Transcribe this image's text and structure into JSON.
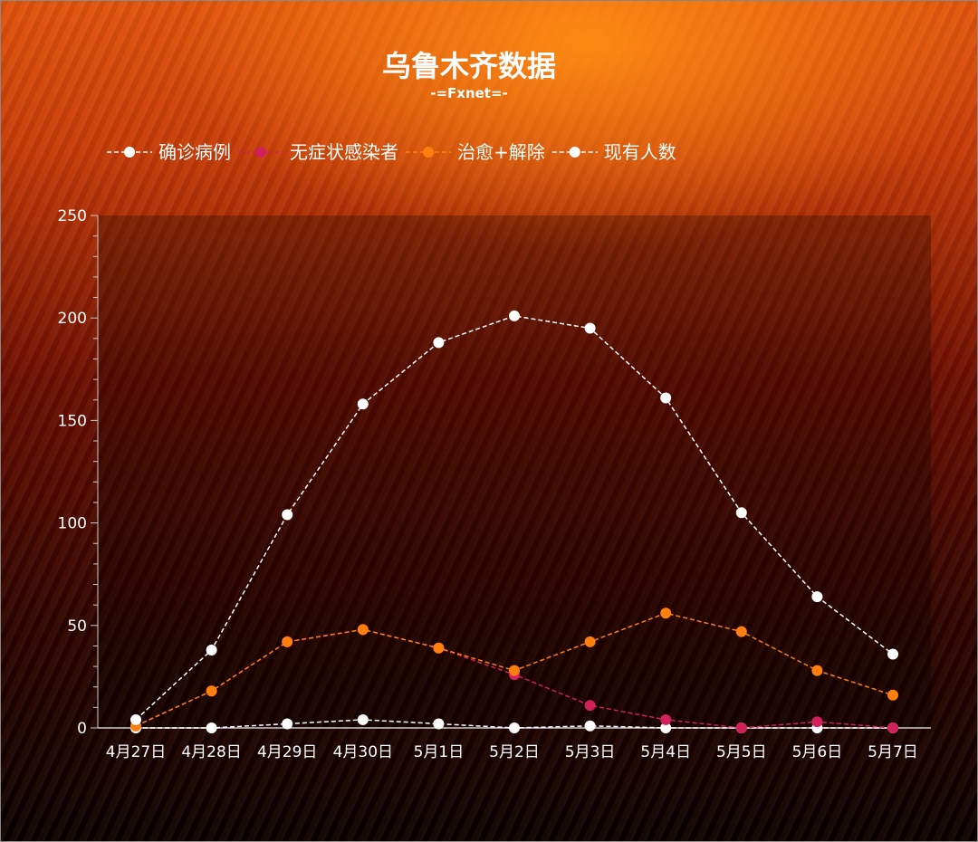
{
  "chart_data": {
    "type": "line",
    "title": "乌鲁木齐数据",
    "subtitle": "-=Fxnet=-",
    "categories": [
      "4月27日",
      "4月28日",
      "4月29日",
      "4月30日",
      "5月1日",
      "5月2日",
      "5月3日",
      "5月4日",
      "5月5日",
      "5月6日",
      "5月7日"
    ],
    "ylim": [
      0,
      250
    ],
    "yticks": [
      0,
      50,
      100,
      150,
      200,
      250
    ],
    "grid": false,
    "legend_position": "top-left",
    "series": [
      {
        "name": "确诊病例",
        "color": "#ffffff",
        "values": [
          0,
          0,
          2,
          4,
          2,
          0,
          1,
          0,
          0,
          0,
          0
        ]
      },
      {
        "name": "无症状感染者",
        "color": "#d0215a",
        "values": [
          1,
          18,
          42,
          48,
          39,
          26,
          11,
          4,
          0,
          3,
          0
        ]
      },
      {
        "name": "治愈+解除",
        "color": "#ff7f0e",
        "values": [
          1,
          18,
          42,
          48,
          39,
          28,
          42,
          56,
          47,
          28,
          16
        ]
      },
      {
        "name": "现有人数",
        "color": "#ffffff",
        "values": [
          4,
          38,
          104,
          158,
          188,
          201,
          195,
          161,
          105,
          64,
          36
        ]
      }
    ]
  }
}
